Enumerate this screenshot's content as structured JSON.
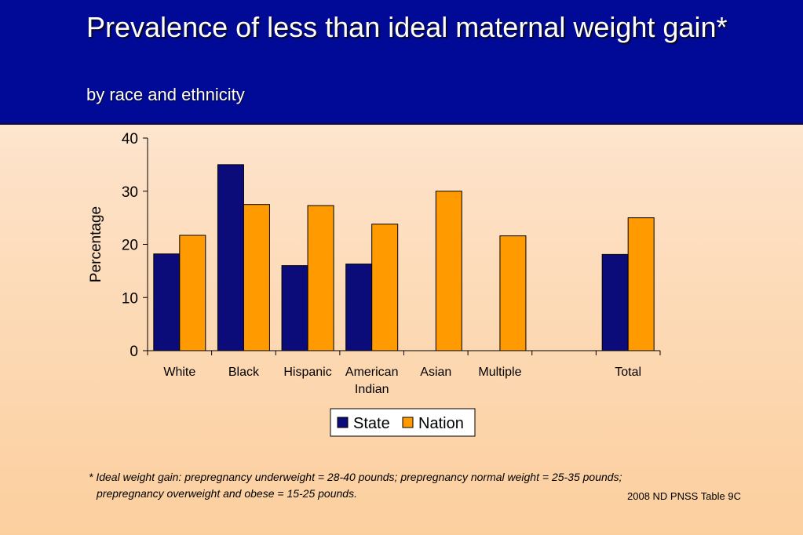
{
  "slide": {
    "title": "Prevalence of less than ideal maternal weight gain*",
    "subtitle": "by race and ethnicity",
    "footnote_line1": "*  Ideal weight gain: prepregnancy underweight = 28-40 pounds; prepregnancy normal weight = 25-35 pounds;",
    "footnote_line2": "prepregnancy overweight and obese = 15-25 pounds.",
    "source": "2008 ND PNSS Table 9C"
  },
  "colors": {
    "header_bg": "#000a96",
    "state": "#0b0b7a",
    "nation": "#ff9a00"
  },
  "chart_data": {
    "type": "bar",
    "title": "",
    "xlabel": "",
    "ylabel": "Percentage",
    "ylim": [
      0,
      40
    ],
    "yticks": [
      0,
      10,
      20,
      30,
      40
    ],
    "categories": [
      [
        "White"
      ],
      [
        "Black"
      ],
      [
        "Hispanic"
      ],
      [
        "American",
        "Indian"
      ],
      [
        "Asian"
      ],
      [
        "Multiple"
      ],
      [
        ""
      ],
      [
        "Total"
      ]
    ],
    "series": [
      {
        "name": "State",
        "values": [
          18.2,
          35.0,
          16.0,
          16.3,
          null,
          null,
          null,
          18.1
        ]
      },
      {
        "name": "Nation",
        "values": [
          21.7,
          27.5,
          27.3,
          23.8,
          30.0,
          21.6,
          null,
          25.0
        ]
      }
    ],
    "legend": "bottom-center",
    "grid": false
  }
}
